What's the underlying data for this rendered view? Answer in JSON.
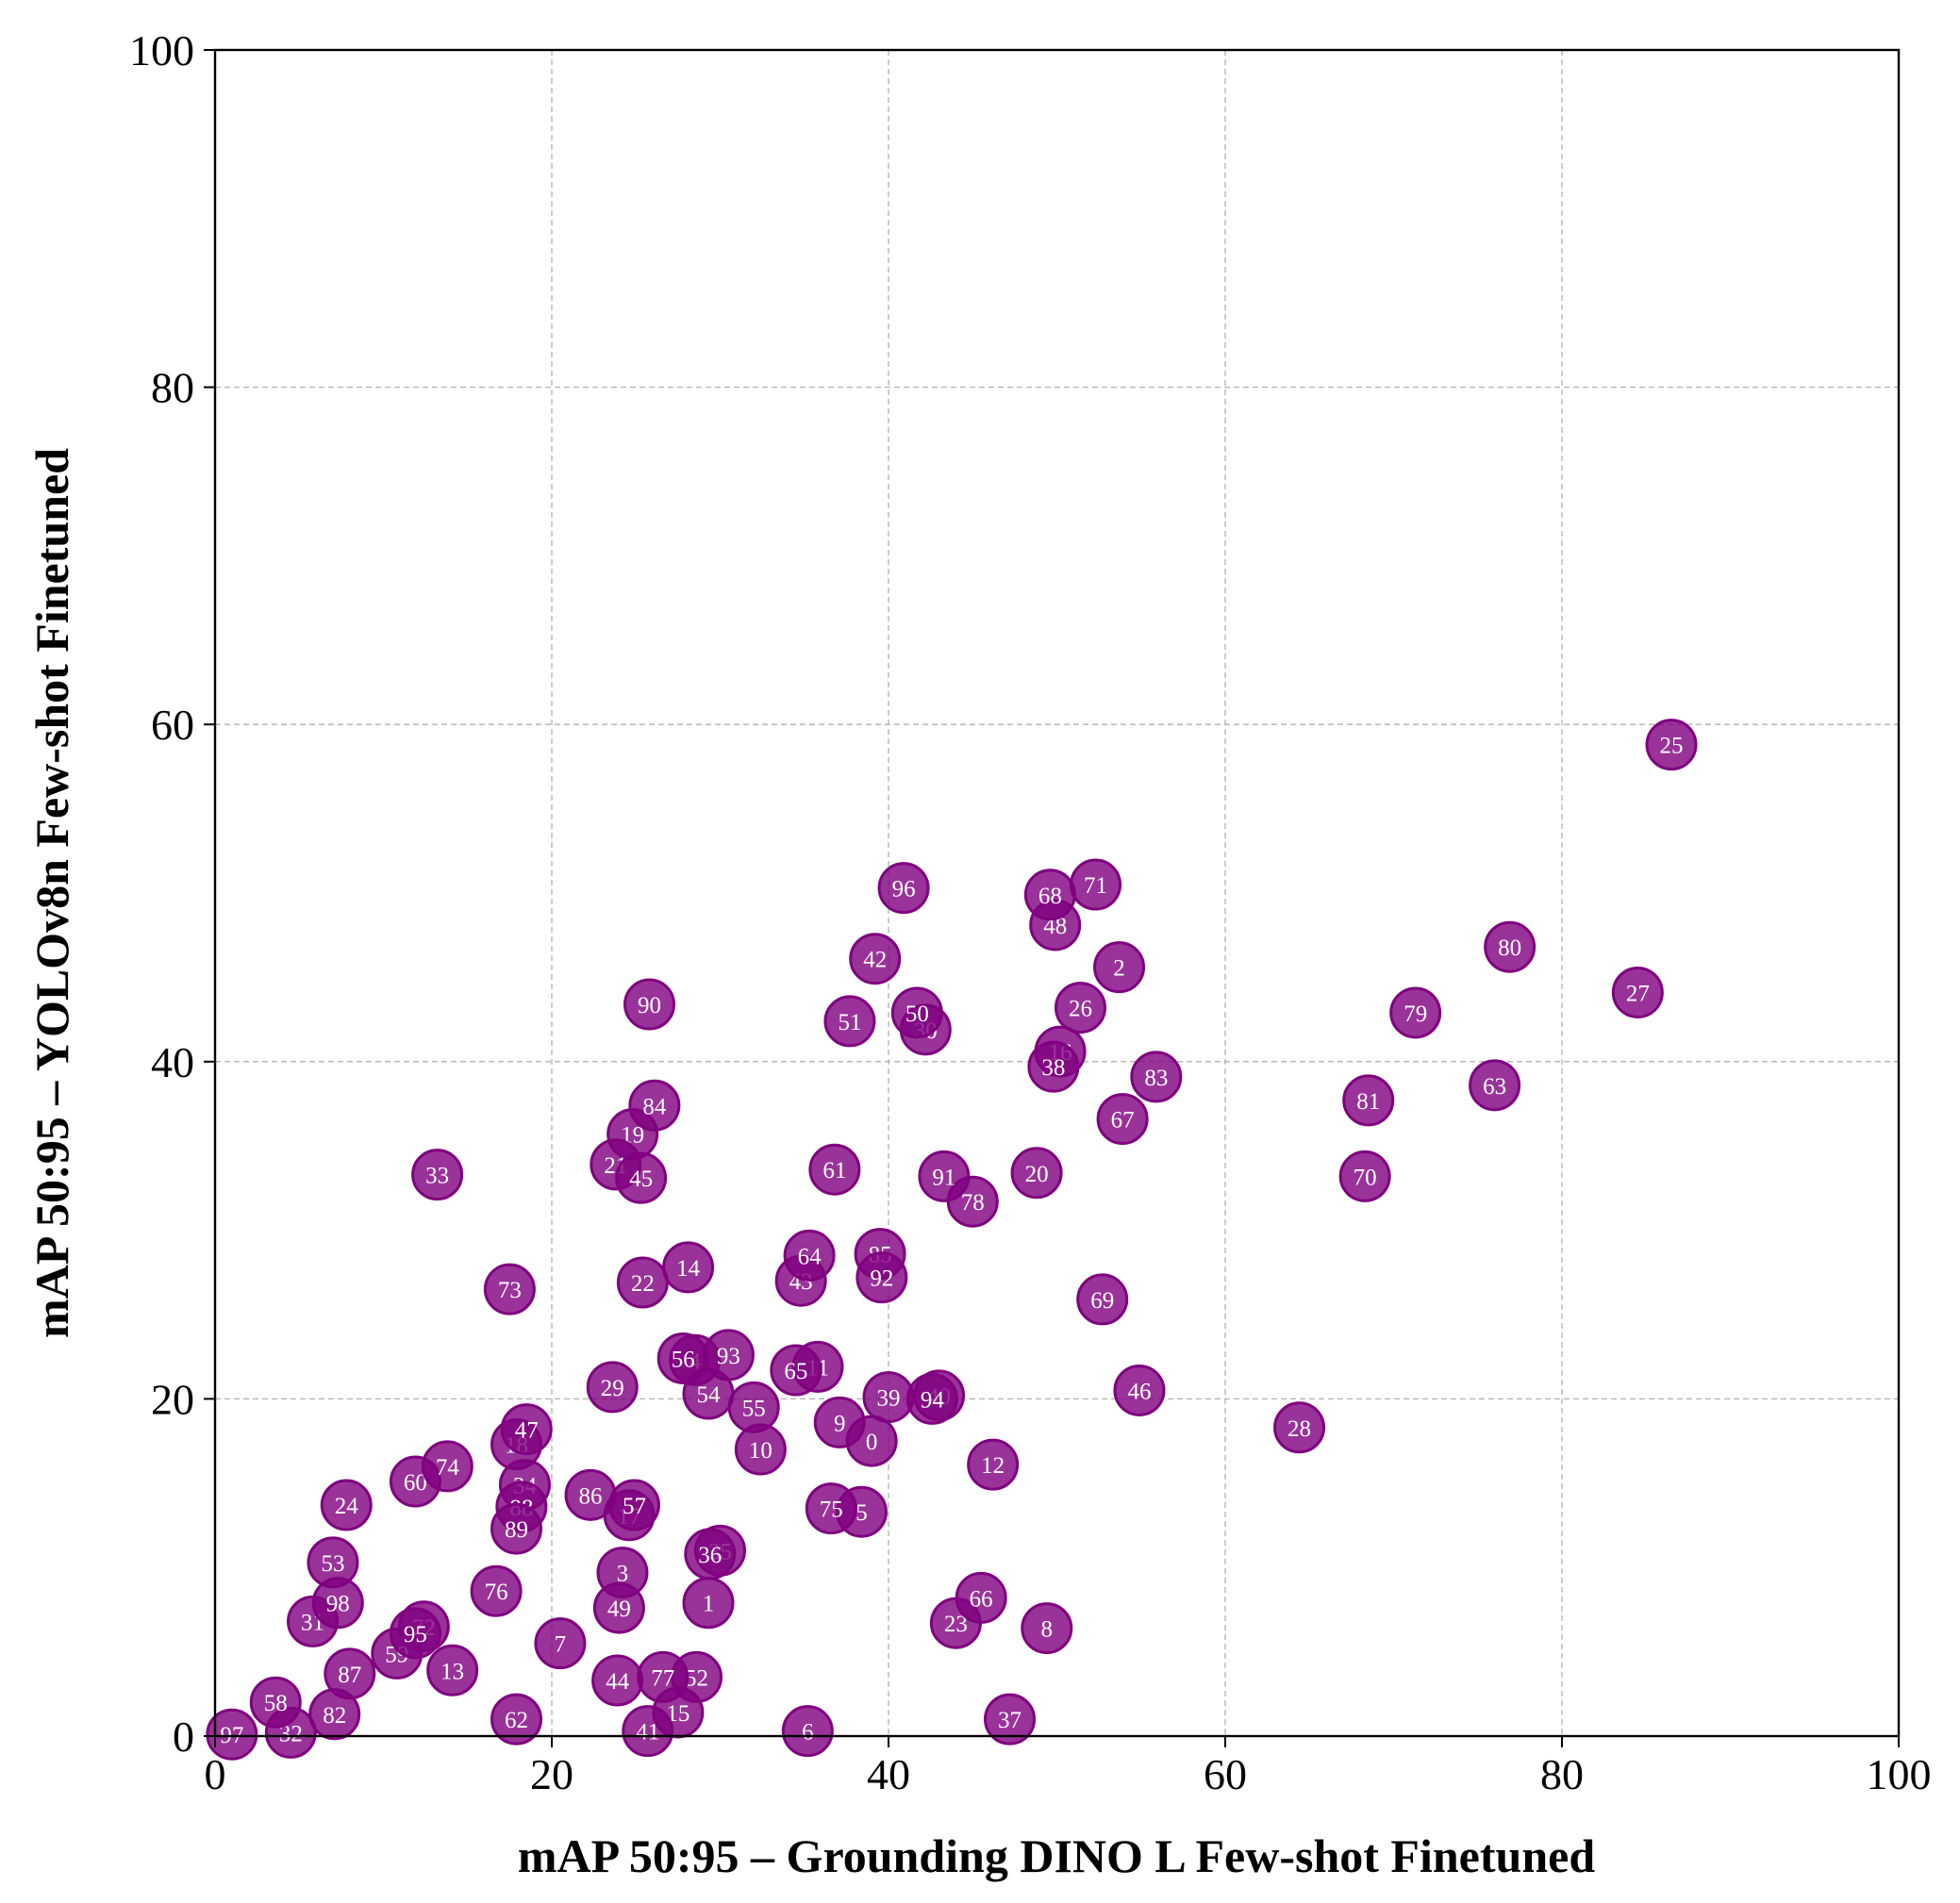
{
  "chart_data": {
    "type": "scatter",
    "xlabel": "mAP 50:95 – Grounding DINO L Few-shot Finetuned",
    "ylabel": "mAP 50:95 – YOLOv8n Few-shot Finetuned",
    "xlim": [
      0,
      100
    ],
    "ylim": [
      0,
      100
    ],
    "xticks": [
      0,
      20,
      40,
      60,
      80,
      100
    ],
    "yticks": [
      0,
      20,
      40,
      60,
      80,
      100
    ],
    "grid": true,
    "marker_color": "#800080",
    "marker_label_color": "#ffffff",
    "points": [
      {
        "label": "0",
        "x": 39.0,
        "y": 17.5
      },
      {
        "label": "1",
        "x": 29.3,
        "y": 7.9
      },
      {
        "label": "2",
        "x": 53.7,
        "y": 45.6
      },
      {
        "label": "3",
        "x": 24.2,
        "y": 9.7
      },
      {
        "label": "4",
        "x": 28.5,
        "y": 22.3
      },
      {
        "label": "5",
        "x": 38.4,
        "y": 13.3
      },
      {
        "label": "6",
        "x": 35.2,
        "y": 0.3
      },
      {
        "label": "7",
        "x": 20.5,
        "y": 5.5
      },
      {
        "label": "8",
        "x": 49.4,
        "y": 6.4
      },
      {
        "label": "9",
        "x": 37.1,
        "y": 18.6
      },
      {
        "label": "10",
        "x": 32.4,
        "y": 17.0
      },
      {
        "label": "11",
        "x": 35.8,
        "y": 21.9
      },
      {
        "label": "12",
        "x": 46.2,
        "y": 16.1
      },
      {
        "label": "13",
        "x": 14.1,
        "y": 3.9
      },
      {
        "label": "14",
        "x": 28.1,
        "y": 27.8
      },
      {
        "label": "15",
        "x": 27.5,
        "y": 1.4
      },
      {
        "label": "16",
        "x": 50.2,
        "y": 40.6
      },
      {
        "label": "17",
        "x": 24.6,
        "y": 13.1
      },
      {
        "label": "18",
        "x": 17.9,
        "y": 17.3
      },
      {
        "label": "19",
        "x": 24.8,
        "y": 35.7
      },
      {
        "label": "20",
        "x": 48.8,
        "y": 33.4
      },
      {
        "label": "21",
        "x": 23.8,
        "y": 33.9
      },
      {
        "label": "22",
        "x": 25.4,
        "y": 26.9
      },
      {
        "label": "23",
        "x": 44.0,
        "y": 6.7
      },
      {
        "label": "24",
        "x": 7.8,
        "y": 13.7
      },
      {
        "label": "25",
        "x": 86.5,
        "y": 58.8
      },
      {
        "label": "26",
        "x": 51.4,
        "y": 43.2
      },
      {
        "label": "27",
        "x": 84.5,
        "y": 44.1
      },
      {
        "label": "28",
        "x": 64.4,
        "y": 18.3
      },
      {
        "label": "29",
        "x": 23.6,
        "y": 20.7
      },
      {
        "label": "30",
        "x": 42.2,
        "y": 41.9
      },
      {
        "label": "31",
        "x": 5.8,
        "y": 6.8
      },
      {
        "label": "32",
        "x": 4.5,
        "y": 0.2
      },
      {
        "label": "33",
        "x": 13.2,
        "y": 33.3
      },
      {
        "label": "34",
        "x": 18.4,
        "y": 14.9
      },
      {
        "label": "35",
        "x": 30.0,
        "y": 11.0
      },
      {
        "label": "36",
        "x": 29.4,
        "y": 10.8
      },
      {
        "label": "37",
        "x": 47.2,
        "y": 1.0
      },
      {
        "label": "38",
        "x": 49.8,
        "y": 39.7
      },
      {
        "label": "39",
        "x": 40.0,
        "y": 20.1
      },
      {
        "label": "40",
        "x": 43.0,
        "y": 20.2
      },
      {
        "label": "41",
        "x": 25.7,
        "y": 0.3
      },
      {
        "label": "42",
        "x": 39.2,
        "y": 46.1
      },
      {
        "label": "43",
        "x": 34.8,
        "y": 27.0
      },
      {
        "label": "44",
        "x": 23.9,
        "y": 3.3
      },
      {
        "label": "45",
        "x": 25.3,
        "y": 33.1
      },
      {
        "label": "46",
        "x": 54.9,
        "y": 20.5
      },
      {
        "label": "47",
        "x": 18.5,
        "y": 18.2
      },
      {
        "label": "48",
        "x": 49.9,
        "y": 48.1
      },
      {
        "label": "49",
        "x": 24.0,
        "y": 7.6
      },
      {
        "label": "50",
        "x": 41.7,
        "y": 42.9
      },
      {
        "label": "51",
        "x": 37.7,
        "y": 42.4
      },
      {
        "label": "52",
        "x": 28.6,
        "y": 3.5
      },
      {
        "label": "53",
        "x": 7.0,
        "y": 10.3
      },
      {
        "label": "54",
        "x": 29.3,
        "y": 20.3
      },
      {
        "label": "55",
        "x": 32.0,
        "y": 19.5
      },
      {
        "label": "56",
        "x": 27.8,
        "y": 22.4
      },
      {
        "label": "57",
        "x": 24.9,
        "y": 13.7
      },
      {
        "label": "58",
        "x": 3.6,
        "y": 2.0
      },
      {
        "label": "59",
        "x": 10.8,
        "y": 4.9
      },
      {
        "label": "60",
        "x": 11.9,
        "y": 15.1
      },
      {
        "label": "61",
        "x": 36.8,
        "y": 33.6
      },
      {
        "label": "62",
        "x": 17.9,
        "y": 1.0
      },
      {
        "label": "63",
        "x": 76.0,
        "y": 38.6
      },
      {
        "label": "64",
        "x": 35.3,
        "y": 28.5
      },
      {
        "label": "65",
        "x": 34.5,
        "y": 21.7
      },
      {
        "label": "66",
        "x": 45.5,
        "y": 8.2
      },
      {
        "label": "67",
        "x": 53.9,
        "y": 36.6
      },
      {
        "label": "68",
        "x": 49.6,
        "y": 49.9
      },
      {
        "label": "69",
        "x": 52.7,
        "y": 25.9
      },
      {
        "label": "70",
        "x": 68.3,
        "y": 33.2
      },
      {
        "label": "71",
        "x": 52.3,
        "y": 50.5
      },
      {
        "label": "72",
        "x": 12.4,
        "y": 6.5
      },
      {
        "label": "73",
        "x": 17.5,
        "y": 26.5
      },
      {
        "label": "74",
        "x": 13.8,
        "y": 16.0
      },
      {
        "label": "75",
        "x": 36.6,
        "y": 13.5
      },
      {
        "label": "76",
        "x": 16.7,
        "y": 8.6
      },
      {
        "label": "77",
        "x": 26.6,
        "y": 3.5
      },
      {
        "label": "78",
        "x": 45.0,
        "y": 31.7
      },
      {
        "label": "79",
        "x": 71.3,
        "y": 42.9
      },
      {
        "label": "80",
        "x": 76.9,
        "y": 46.8
      },
      {
        "label": "81",
        "x": 68.5,
        "y": 37.7
      },
      {
        "label": "82",
        "x": 7.1,
        "y": 1.3
      },
      {
        "label": "83",
        "x": 55.9,
        "y": 39.1
      },
      {
        "label": "84",
        "x": 26.1,
        "y": 37.4
      },
      {
        "label": "85",
        "x": 39.5,
        "y": 28.6
      },
      {
        "label": "86",
        "x": 22.3,
        "y": 14.3
      },
      {
        "label": "87",
        "x": 8.0,
        "y": 3.7
      },
      {
        "label": "88",
        "x": 18.2,
        "y": 13.6
      },
      {
        "label": "89",
        "x": 17.9,
        "y": 12.3
      },
      {
        "label": "90",
        "x": 25.8,
        "y": 43.4
      },
      {
        "label": "91",
        "x": 43.3,
        "y": 33.2
      },
      {
        "label": "92",
        "x": 39.6,
        "y": 27.2
      },
      {
        "label": "93",
        "x": 30.5,
        "y": 22.6
      },
      {
        "label": "94",
        "x": 42.6,
        "y": 20.0
      },
      {
        "label": "95",
        "x": 11.9,
        "y": 6.1
      },
      {
        "label": "96",
        "x": 40.9,
        "y": 50.3
      },
      {
        "label": "97",
        "x": 1.0,
        "y": 0.1
      },
      {
        "label": "98",
        "x": 7.3,
        "y": 7.9
      }
    ]
  }
}
